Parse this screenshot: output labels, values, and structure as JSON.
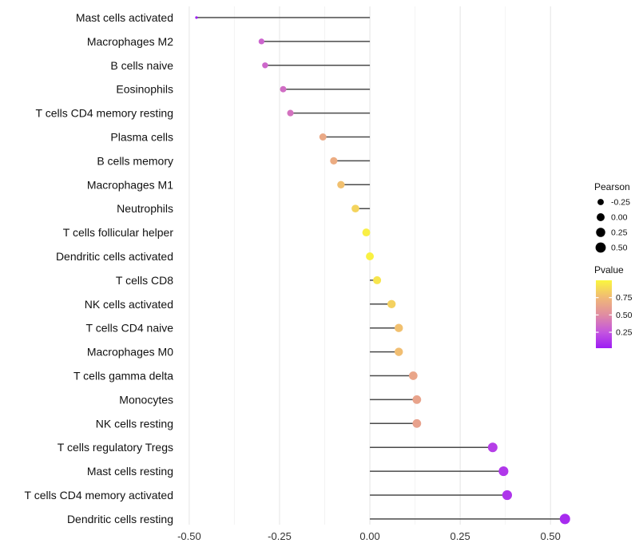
{
  "figure": {
    "background": "#ffffff"
  },
  "chart_data": {
    "type": "lollipop",
    "title": "",
    "xlabel": "",
    "ylabel": "",
    "x_ticks": {
      "values": [
        -0.5,
        -0.25,
        0.0,
        0.25,
        0.5
      ],
      "labels": [
        "-0.50",
        "-0.25",
        "0.00",
        "0.25",
        "0.50"
      ]
    },
    "x_minor_ticks": [
      -0.375,
      -0.125,
      0.125,
      0.375
    ],
    "xlim": [
      -0.533,
      0.588
    ],
    "baseline": 0,
    "grid": true,
    "legend_position": "right",
    "rows": [
      {
        "label": "Mast cells activated",
        "pearson": -0.48,
        "pvalue": 0.02
      },
      {
        "label": "Macrophages M2",
        "pearson": -0.3,
        "pvalue": 0.32
      },
      {
        "label": "B cells naive",
        "pearson": -0.29,
        "pvalue": 0.33
      },
      {
        "label": "Eosinophils",
        "pearson": -0.24,
        "pvalue": 0.36
      },
      {
        "label": "T cells CD4 memory resting",
        "pearson": -0.22,
        "pvalue": 0.38
      },
      {
        "label": "Plasma cells",
        "pearson": -0.13,
        "pvalue": 0.66
      },
      {
        "label": "B cells memory",
        "pearson": -0.1,
        "pvalue": 0.68
      },
      {
        "label": "Macrophages M1",
        "pearson": -0.08,
        "pvalue": 0.78
      },
      {
        "label": "Neutrophils",
        "pearson": -0.04,
        "pvalue": 0.86
      },
      {
        "label": "T cells follicular helper",
        "pearson": -0.01,
        "pvalue": 0.97
      },
      {
        "label": "Dendritic cells activated",
        "pearson": 0.0,
        "pvalue": 0.98
      },
      {
        "label": "T cells CD8",
        "pearson": 0.02,
        "pvalue": 0.93
      },
      {
        "label": "NK cells activated",
        "pearson": 0.06,
        "pvalue": 0.85
      },
      {
        "label": "T cells CD4 naive",
        "pearson": 0.08,
        "pvalue": 0.78
      },
      {
        "label": "Macrophages M0",
        "pearson": 0.08,
        "pvalue": 0.77
      },
      {
        "label": "T cells gamma delta",
        "pearson": 0.12,
        "pvalue": 0.64
      },
      {
        "label": "Monocytes",
        "pearson": 0.13,
        "pvalue": 0.63
      },
      {
        "label": "NK cells resting",
        "pearson": 0.13,
        "pvalue": 0.62
      },
      {
        "label": "T cells regulatory  Tregs",
        "pearson": 0.34,
        "pvalue": 0.16
      },
      {
        "label": "Mast cells resting",
        "pearson": 0.37,
        "pvalue": 0.13
      },
      {
        "label": "T cells CD4 memory activated",
        "pearson": 0.38,
        "pvalue": 0.12
      },
      {
        "label": "Dendritic cells resting",
        "pearson": 0.54,
        "pvalue": 0.08
      }
    ],
    "size_legend": {
      "title": "Pearson",
      "values": [
        -0.25,
        0.0,
        0.25,
        0.5
      ],
      "labels": [
        "-0.25",
        "0.00",
        "0.25",
        "0.50"
      ],
      "dot_color": "#000000"
    },
    "color_legend": {
      "title": "Pvalue",
      "tick_values": [
        0.75,
        0.5,
        0.25
      ],
      "tick_labels": [
        "0.75",
        "0.50",
        "0.25"
      ],
      "range": [
        0.02,
        1.0
      ],
      "stops": [
        {
          "p": 0.02,
          "color": "#9D1CF4"
        },
        {
          "p": 0.25,
          "color": "#C455DF"
        },
        {
          "p": 0.5,
          "color": "#E08CA2"
        },
        {
          "p": 0.75,
          "color": "#F0B976"
        },
        {
          "p": 1.0,
          "color": "#FAF63E"
        }
      ]
    },
    "style": {
      "stem_color": "#4a4a4a",
      "grid_major_color": "#e4e4e4",
      "grid_minor_color": "#f3f3f3",
      "x_axis_text_color": "#333333",
      "y_axis_text_color": "#111111",
      "legend_text_color": "#111111",
      "background": "#ffffff"
    }
  }
}
